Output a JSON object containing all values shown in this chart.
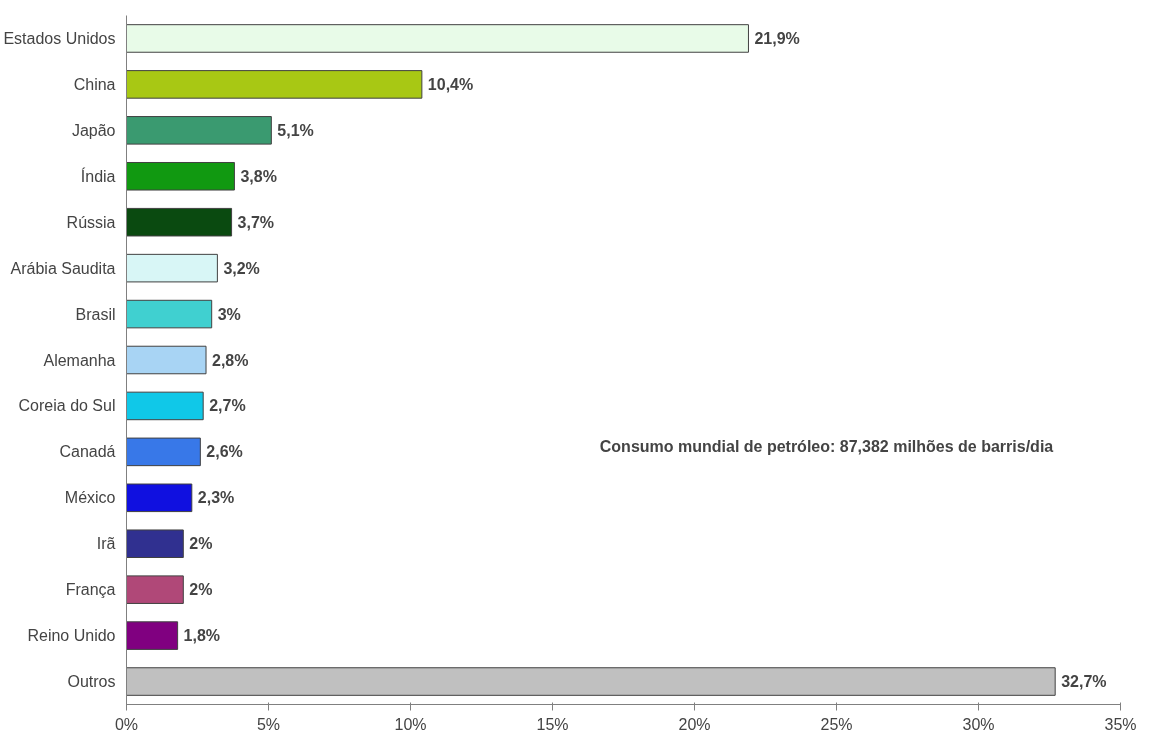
{
  "chart_data": {
    "type": "bar",
    "orientation": "horizontal",
    "categories": [
      "Estados Unidos",
      "China",
      "Japão",
      "Índia",
      "Rússia",
      "Arábia Saudita",
      "Brasil",
      "Alemanha",
      "Coreia do Sul",
      "Canadá",
      "México",
      "Irã",
      "França",
      "Reino Unido",
      "Outros"
    ],
    "values": [
      21.9,
      10.4,
      5.1,
      3.8,
      3.7,
      3.2,
      3.0,
      2.8,
      2.7,
      2.6,
      2.3,
      2.0,
      2.0,
      1.8,
      32.7
    ],
    "value_labels": [
      "21,9%",
      "10,4%",
      "5,1%",
      "3,8%",
      "3,7%",
      "3,2%",
      "3%",
      "2,8%",
      "2,7%",
      "2,6%",
      "2,3%",
      "2%",
      "2%",
      "1,8%",
      "32,7%"
    ],
    "colors": [
      "#e8fbe8",
      "#a8c814",
      "#3a9a70",
      "#119911",
      "#0a4a10",
      "#d8f6f6",
      "#40d0d0",
      "#a8d4f4",
      "#10c8e8",
      "#3878e8",
      "#1010e0",
      "#303090",
      "#b04878",
      "#800080",
      "#c0c0c0"
    ],
    "xlim": [
      0,
      35
    ],
    "xticks": [
      {
        "value": 0,
        "label": "0%"
      },
      {
        "value": 5,
        "label": "5%"
      },
      {
        "value": 10,
        "label": "10%"
      },
      {
        "value": 15,
        "label": "15%"
      },
      {
        "value": 20,
        "label": "20%"
      },
      {
        "value": 25,
        "label": "25%"
      },
      {
        "value": 30,
        "label": "30%"
      },
      {
        "value": 35,
        "label": "35%"
      }
    ],
    "annotations": [
      "Consumo mundial de petróleo: 87,382 milhões de barris/dia"
    ],
    "grid": false
  }
}
